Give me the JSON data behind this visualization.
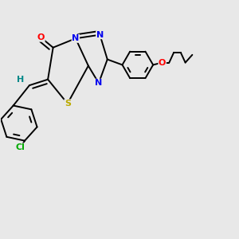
{
  "bg_color": "#e8e8e8",
  "bond_color": "#000000",
  "bond_lw": 1.4,
  "atom_colors": {
    "O": "#ff0000",
    "N": "#0000ee",
    "S": "#bbaa00",
    "Cl": "#00aa00",
    "H": "#008888",
    "C": "#000000"
  },
  "fontsize": 8.0,
  "dbo": 0.016
}
